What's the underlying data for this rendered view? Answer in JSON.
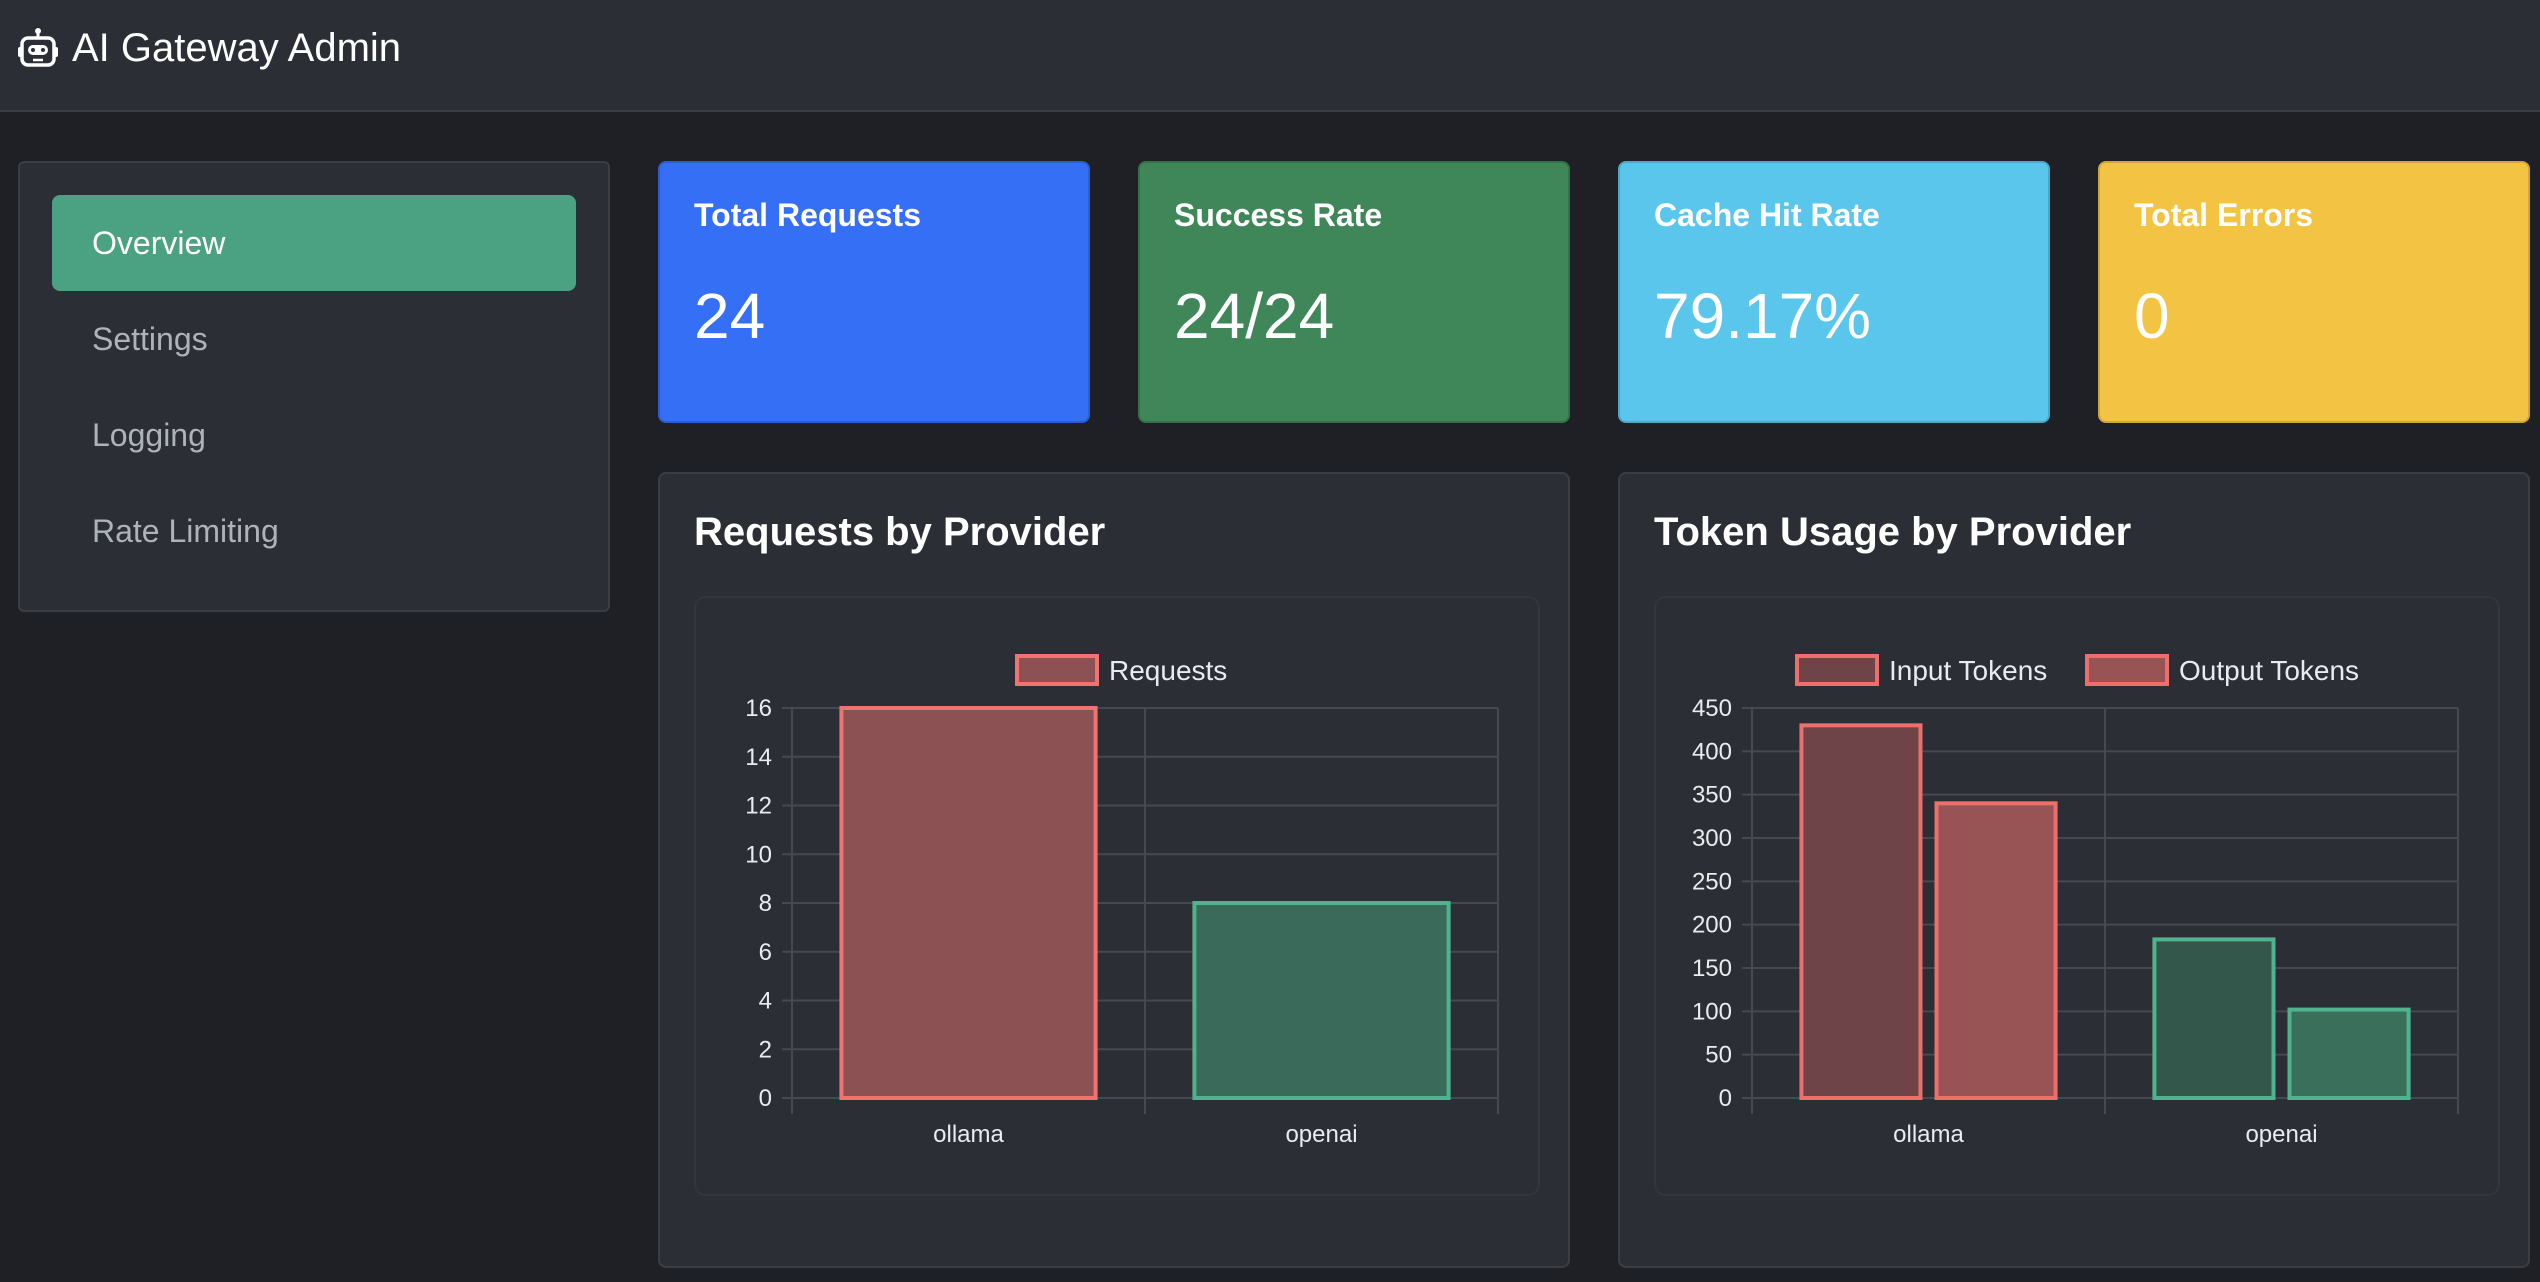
{
  "app": {
    "title": "AI Gateway Admin",
    "brand_icon": "robot-icon"
  },
  "sidebar": {
    "items": [
      {
        "label": "Overview",
        "active": true
      },
      {
        "label": "Settings",
        "active": false
      },
      {
        "label": "Logging",
        "active": false
      },
      {
        "label": "Rate Limiting",
        "active": false
      }
    ]
  },
  "stats": [
    {
      "title": "Total Requests",
      "value": "24",
      "color": "#346ff5"
    },
    {
      "title": "Success Rate",
      "value": "24/24",
      "color": "#3f8658"
    },
    {
      "title": "Cache Hit Rate",
      "value": "79.17%",
      "color": "#5bc6ec"
    },
    {
      "title": "Total Errors",
      "value": "0",
      "color": "#f3c344"
    }
  ],
  "charts": {
    "requests": {
      "title": "Requests by Provider"
    },
    "tokens": {
      "title": "Token Usage by Provider"
    }
  },
  "chart_data": [
    {
      "type": "bar",
      "title": "Requests by Provider",
      "categories": [
        "ollama",
        "openai"
      ],
      "series": [
        {
          "name": "Requests",
          "values": [
            16,
            8
          ]
        }
      ],
      "bar_colors": [
        {
          "fill": "#8c5152",
          "stroke": "#f0736f"
        },
        {
          "fill": "#3a6a5a",
          "stroke": "#4fb48d"
        }
      ],
      "ylim": [
        0,
        16
      ],
      "yticks": [
        0,
        2,
        4,
        6,
        8,
        10,
        12,
        14,
        16
      ],
      "legend": "top",
      "grid": true
    },
    {
      "type": "bar",
      "title": "Token Usage by Provider",
      "categories": [
        "ollama",
        "openai"
      ],
      "series": [
        {
          "name": "Input Tokens",
          "values": [
            430,
            183
          ]
        },
        {
          "name": "Output Tokens",
          "values": [
            340,
            102
          ]
        }
      ],
      "series_colors": [
        {
          "fill": "#6e4448",
          "stroke": "#ec6f6c",
          "openai_fill": "#33584b",
          "openai_stroke": "#4fb48d"
        },
        {
          "fill": "#985354",
          "stroke": "#ec6f6c",
          "openai_fill": "#3a6f5c",
          "openai_stroke": "#4fb48d"
        }
      ],
      "ylim": [
        0,
        450
      ],
      "yticks": [
        0,
        50,
        100,
        150,
        200,
        250,
        300,
        350,
        400,
        450
      ],
      "legend": "top",
      "grid": true
    }
  ]
}
